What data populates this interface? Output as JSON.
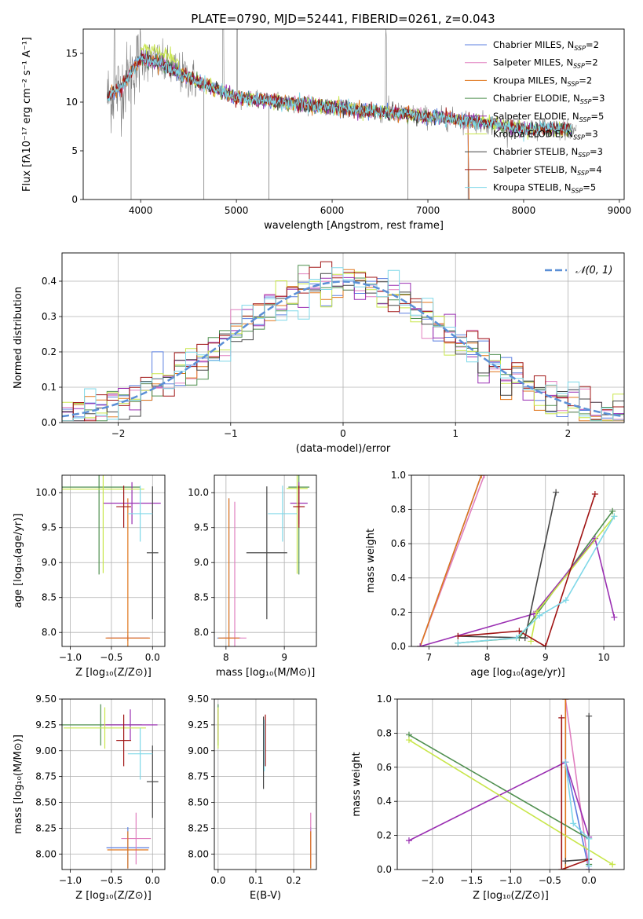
{
  "title": "PLATE=0790, MJD=52441, FIBERID=0261, z=0.043",
  "colors": {
    "chabrier_miles": "#5b7fe0",
    "salpeter_miles": "#e07fbf",
    "kroupa_miles": "#e0761b",
    "chabrier_elodie": "#4f8f4f",
    "salpeter_elodie": "#9a2fb2",
    "kroupa_elodie": "#c8e64a",
    "chabrier_stelib": "#444444",
    "salpeter_stelib": "#a01414",
    "kroupa_stelib": "#7fd8e8",
    "data": "#7f7f7f",
    "gauss": "#5b8fd6"
  },
  "legend_entries": [
    {
      "key": "chabrier_miles",
      "label_main": "Chabrier MILES, N",
      "label_sub": "SSP",
      "label_tail": "=2"
    },
    {
      "key": "salpeter_miles",
      "label_main": "Salpeter MILES, N",
      "label_sub": "SSP",
      "label_tail": "=2"
    },
    {
      "key": "kroupa_miles",
      "label_main": "Kroupa MILES, N",
      "label_sub": "SSP",
      "label_tail": "=2"
    },
    {
      "key": "chabrier_elodie",
      "label_main": "Chabrier ELODIE, N",
      "label_sub": "SSP",
      "label_tail": "=3"
    },
    {
      "key": "salpeter_elodie",
      "label_main": "Salpeter ELODIE, N",
      "label_sub": "SSP",
      "label_tail": "=5"
    },
    {
      "key": "kroupa_elodie",
      "label_main": "Kroupa ELODIE, N",
      "label_sub": "SSP",
      "label_tail": "=3"
    },
    {
      "key": "chabrier_stelib",
      "label_main": "Chabrier STELIB, N",
      "label_sub": "SSP",
      "label_tail": "=3"
    },
    {
      "key": "salpeter_stelib",
      "label_main": "Salpeter STELIB, N",
      "label_sub": "SSP",
      "label_tail": "=4"
    },
    {
      "key": "kroupa_stelib",
      "label_main": "Kroupa STELIB, N",
      "label_sub": "SSP",
      "label_tail": "=5"
    }
  ],
  "chart_data": [
    {
      "id": "spectrum",
      "type": "line",
      "xlabel": "wavelength [Angstrom, rest frame]",
      "ylabel": "Flux [fλ10⁻¹⁷ erg cm⁻² s⁻¹ A⁻¹]",
      "xlim": [
        3400,
        9050
      ],
      "ylim": [
        0,
        17.5
      ],
      "xticks": [
        4000,
        5000,
        6000,
        7000,
        8000,
        9000
      ],
      "yticks": [
        0,
        5,
        10,
        15
      ],
      "continuum": {
        "x": [
          3650,
          3800,
          4000,
          4200,
          4500,
          5000,
          5500,
          6000,
          6500,
          7000,
          7500,
          8000,
          8500
        ],
        "y": [
          10.5,
          11.5,
          14.5,
          14.0,
          12.5,
          10.5,
          10.0,
          9.5,
          9.0,
          8.5,
          8.0,
          7.2,
          7.2
        ]
      },
      "model_extent": {
        "kroupa_miles_end": 7420,
        "model_end": 8500,
        "data_end": 8550
      }
    },
    {
      "id": "residual_hist",
      "type": "line",
      "xlabel": "(data-model)/error",
      "ylabel": "Normed distribution",
      "xlim": [
        -2.5,
        2.5
      ],
      "ylim": [
        0,
        0.48
      ],
      "xticks": [
        -2,
        -1,
        0,
        1,
        2
      ],
      "yticks": [
        0.0,
        0.1,
        0.2,
        0.3,
        0.4
      ],
      "legend": "𝒩(0, 1)",
      "gaussian": {
        "mu": 0,
        "sigma": 1
      }
    },
    {
      "id": "age_vs_Z",
      "type": "scatter",
      "xlabel": "Z [log₁₀(Z/Z⊙)]",
      "ylabel": "age  [log₁₀(age/yr)]",
      "xlim": [
        -1.1,
        0.15
      ],
      "ylim": [
        7.8,
        10.25
      ],
      "xticks": [
        -1.0,
        -0.5,
        0.0
      ],
      "yticks": [
        8.0,
        8.5,
        9.0,
        9.5,
        10.0
      ],
      "points": [
        {
          "key": "chabrier_miles",
          "x": -0.3,
          "y": 7.92,
          "xerr": 0.25,
          "yerr": 0.04
        },
        {
          "key": "salpeter_miles",
          "x": -0.3,
          "y": 7.92,
          "xerr": 0.26,
          "yerr": 0.03
        },
        {
          "key": "kroupa_miles",
          "x": -0.3,
          "y": 7.92,
          "xerr": 0.27,
          "yerr": 2.0
        },
        {
          "key": "chabrier_elodie",
          "x": -0.65,
          "y": 10.08,
          "xerr": 0.5,
          "yerr": 1.25
        },
        {
          "key": "salpeter_elodie",
          "x": -0.25,
          "y": 9.85,
          "xerr": 0.35,
          "yerr": 0.3
        },
        {
          "key": "kroupa_elodie",
          "x": -0.6,
          "y": 10.05,
          "xerr": 0.5,
          "yerr": 1.2
        },
        {
          "key": "chabrier_stelib",
          "x": 0.0,
          "y": 9.14,
          "xerr": 0.07,
          "yerr": 0.95
        },
        {
          "key": "salpeter_stelib",
          "x": -0.35,
          "y": 9.8,
          "xerr": 0.09,
          "yerr": 0.3
        },
        {
          "key": "kroupa_stelib",
          "x": -0.15,
          "y": 9.7,
          "xerr": 0.15,
          "yerr": 0.4
        }
      ]
    },
    {
      "id": "age_vs_mass",
      "type": "scatter",
      "xlabel": "mass [log₁₀(M/M⊙)]",
      "ylabel": "",
      "xlim": [
        7.8,
        9.55
      ],
      "ylim": [
        7.8,
        10.25
      ],
      "xticks": [
        8,
        9
      ],
      "yticks": [
        8.0,
        8.5,
        9.0,
        9.5,
        10.0
      ],
      "points": [
        {
          "key": "chabrier_miles",
          "x": 8.05,
          "y": 7.92,
          "xerr": 0.2,
          "yerr": 2.0
        },
        {
          "key": "salpeter_miles",
          "x": 8.15,
          "y": 7.92,
          "xerr": 0.2,
          "yerr": 1.95
        },
        {
          "key": "kroupa_miles",
          "x": 8.05,
          "y": 7.92,
          "xerr": 0.18,
          "yerr": 2.0
        },
        {
          "key": "chabrier_elodie",
          "x": 9.25,
          "y": 10.08,
          "xerr": 0.18,
          "yerr": 1.25
        },
        {
          "key": "salpeter_elodie",
          "x": 9.25,
          "y": 9.85,
          "xerr": 0.15,
          "yerr": 0.3
        },
        {
          "key": "kroupa_elodie",
          "x": 9.22,
          "y": 10.06,
          "xerr": 0.18,
          "yerr": 1.22
        },
        {
          "key": "chabrier_stelib",
          "x": 8.7,
          "y": 9.14,
          "xerr": 0.35,
          "yerr": 0.95
        },
        {
          "key": "salpeter_stelib",
          "x": 9.25,
          "y": 9.8,
          "xerr": 0.1,
          "yerr": 0.3
        },
        {
          "key": "kroupa_stelib",
          "x": 8.97,
          "y": 9.7,
          "xerr": 0.25,
          "yerr": 0.4
        }
      ]
    },
    {
      "id": "weight_vs_age",
      "type": "line",
      "xlabel": "age  [log₁₀(age/yr)]",
      "ylabel": "mass weight",
      "xlim": [
        6.7,
        10.35
      ],
      "ylim": [
        0,
        1
      ],
      "xticks": [
        7,
        8,
        9,
        10
      ],
      "yticks": [
        0.0,
        0.2,
        0.4,
        0.6,
        0.8,
        1.0
      ],
      "series": [
        {
          "key": "chabrier_miles",
          "x": [
            6.85,
            7.9
          ],
          "y": [
            0.0,
            1.0
          ]
        },
        {
          "key": "salpeter_miles",
          "x": [
            6.85,
            7.95
          ],
          "y": [
            0.0,
            1.0
          ]
        },
        {
          "key": "kroupa_miles",
          "x": [
            6.85,
            7.9
          ],
          "y": [
            0.0,
            1.0
          ]
        },
        {
          "key": "chabrier_elodie",
          "x": [
            7.5,
            8.55,
            10.15
          ],
          "y": [
            0.02,
            0.05,
            0.79
          ]
        },
        {
          "key": "salpeter_elodie",
          "x": [
            6.85,
            8.8,
            9.85,
            10.18
          ],
          "y": [
            0.0,
            0.19,
            0.63,
            0.17
          ]
        },
        {
          "key": "kroupa_elodie",
          "x": [
            8.75,
            8.85,
            10.18
          ],
          "y": [
            0.03,
            0.2,
            0.76
          ]
        },
        {
          "key": "chabrier_stelib",
          "x": [
            7.5,
            8.65,
            9.18
          ],
          "y": [
            0.06,
            0.05,
            0.9
          ]
        },
        {
          "key": "salpeter_stelib",
          "x": [
            7.5,
            8.55,
            9.0,
            9.85
          ],
          "y": [
            0.06,
            0.09,
            0.0,
            0.89
          ]
        },
        {
          "key": "kroupa_stelib",
          "x": [
            7.5,
            8.5,
            8.9,
            9.35,
            10.18
          ],
          "y": [
            0.02,
            0.05,
            0.18,
            0.27,
            0.76
          ]
        }
      ]
    },
    {
      "id": "mass_vs_Z",
      "type": "scatter",
      "xlabel": "Z [log₁₀(Z/Z⊙)]",
      "ylabel": "mass [log₁₀(M/M⊙)]",
      "xlim": [
        -1.1,
        0.15
      ],
      "ylim": [
        7.85,
        9.5
      ],
      "xticks": [
        -1.0,
        -0.5,
        0.0
      ],
      "yticks": [
        8.0,
        8.25,
        8.5,
        8.75,
        9.0,
        9.25,
        9.5
      ],
      "points": [
        {
          "key": "chabrier_miles",
          "x": -0.3,
          "y": 8.06,
          "xerr": 0.26,
          "yerr": 0.2
        },
        {
          "key": "salpeter_miles",
          "x": -0.2,
          "y": 8.15,
          "xerr": 0.18,
          "yerr": 0.25
        },
        {
          "key": "kroupa_miles",
          "x": -0.3,
          "y": 8.04,
          "xerr": 0.25,
          "yerr": 0.18
        },
        {
          "key": "chabrier_elodie",
          "x": -0.63,
          "y": 9.25,
          "xerr": 0.5,
          "yerr": 0.2
        },
        {
          "key": "salpeter_elodie",
          "x": -0.27,
          "y": 9.25,
          "xerr": 0.33,
          "yerr": 0.15
        },
        {
          "key": "kroupa_elodie",
          "x": -0.58,
          "y": 9.22,
          "xerr": 0.5,
          "yerr": 0.2
        },
        {
          "key": "chabrier_stelib",
          "x": 0.0,
          "y": 8.7,
          "xerr": 0.07,
          "yerr": 0.35
        },
        {
          "key": "salpeter_stelib",
          "x": -0.35,
          "y": 9.1,
          "xerr": 0.09,
          "yerr": 0.25
        },
        {
          "key": "kroupa_stelib",
          "x": -0.15,
          "y": 8.97,
          "xerr": 0.15,
          "yerr": 0.25
        }
      ]
    },
    {
      "id": "mass_vs_ebv",
      "type": "scatter",
      "xlabel": "E(B-V)",
      "ylabel": "",
      "xlim": [
        -0.01,
        0.26
      ],
      "ylim": [
        7.85,
        9.5
      ],
      "xticks": [
        0.0,
        0.1,
        0.2
      ],
      "yticks": [
        8.0,
        8.25,
        8.5,
        8.75,
        9.0,
        9.25,
        9.5
      ],
      "points": [
        {
          "key": "chabrier_miles",
          "x": 0.245,
          "y": 8.06,
          "xerr": 0.0,
          "yerr": 0.2
        },
        {
          "key": "salpeter_miles",
          "x": 0.245,
          "y": 8.15,
          "xerr": 0.0,
          "yerr": 0.25
        },
        {
          "key": "kroupa_miles",
          "x": 0.245,
          "y": 8.04,
          "xerr": 0.0,
          "yerr": 0.18
        },
        {
          "key": "chabrier_elodie",
          "x": 0.0,
          "y": 9.25,
          "xerr": 0.0,
          "yerr": 0.2
        },
        {
          "key": "salpeter_elodie",
          "x": 0.0,
          "y": 9.25,
          "xerr": 0.0,
          "yerr": 0.15
        },
        {
          "key": "kroupa_elodie",
          "x": 0.0,
          "y": 9.22,
          "xerr": 0.0,
          "yerr": 0.2
        },
        {
          "key": "chabrier_stelib",
          "x": 0.12,
          "y": 8.98,
          "xerr": 0.0,
          "yerr": 0.35
        },
        {
          "key": "salpeter_stelib",
          "x": 0.125,
          "y": 9.1,
          "xerr": 0.0,
          "yerr": 0.25
        },
        {
          "key": "kroupa_stelib",
          "x": 0.122,
          "y": 9.05,
          "xerr": 0.0,
          "yerr": 0.25
        }
      ]
    },
    {
      "id": "weight_vs_Z",
      "type": "line",
      "xlabel": "Z [log₁₀(Z/Z⊙)]",
      "ylabel": "mass weight",
      "xlim": [
        -2.45,
        0.45
      ],
      "ylim": [
        0,
        1
      ],
      "xticks": [
        -2.0,
        -1.5,
        -1.0,
        -0.5,
        0.0
      ],
      "yticks": [
        0.0,
        0.2,
        0.4,
        0.6,
        0.8,
        1.0
      ],
      "series": [
        {
          "key": "chabrier_miles",
          "x": [
            -0.3,
            -0.3,
            0.0
          ],
          "y": [
            1.0,
            0.63,
            0.0
          ]
        },
        {
          "key": "salpeter_miles",
          "x": [
            -0.3,
            0.0
          ],
          "y": [
            1.0,
            0.0
          ]
        },
        {
          "key": "kroupa_miles",
          "x": [
            -0.3,
            -0.3
          ],
          "y": [
            1.0,
            0.0
          ]
        },
        {
          "key": "chabrier_elodie",
          "x": [
            -2.3,
            0.0,
            0.0
          ],
          "y": [
            0.79,
            0.18,
            0.03
          ]
        },
        {
          "key": "salpeter_elodie",
          "x": [
            -2.3,
            -0.3,
            0.0,
            0.0
          ],
          "y": [
            0.17,
            0.63,
            0.19,
            0.0
          ]
        },
        {
          "key": "kroupa_elodie",
          "x": [
            -2.3,
            0.3,
            0.3
          ],
          "y": [
            0.76,
            0.03,
            0.03
          ]
        },
        {
          "key": "chabrier_stelib",
          "x": [
            0.0,
            0.0,
            -0.3
          ],
          "y": [
            0.9,
            0.06,
            0.05
          ]
        },
        {
          "key": "salpeter_stelib",
          "x": [
            -0.35,
            -0.35,
            0.0
          ],
          "y": [
            0.89,
            0.0,
            0.06
          ]
        },
        {
          "key": "kroupa_stelib",
          "x": [
            -0.3,
            -0.2,
            0.0,
            0.0
          ],
          "y": [
            0.63,
            0.27,
            0.18,
            0.02
          ]
        }
      ]
    }
  ]
}
